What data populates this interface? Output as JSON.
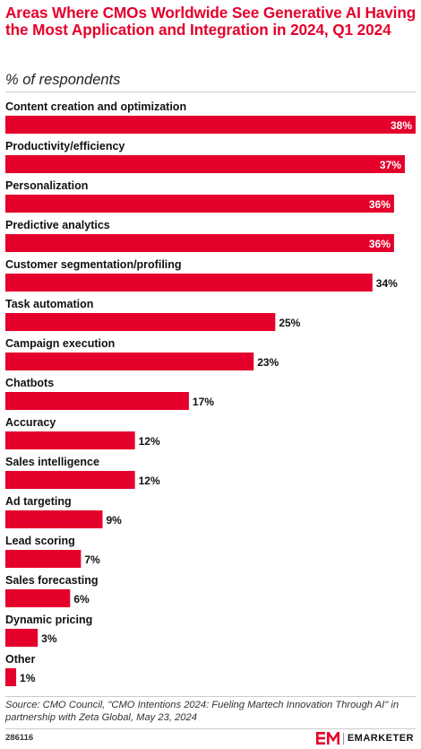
{
  "chart_data": {
    "type": "bar",
    "orientation": "horizontal",
    "title": "Areas Where CMOs Worldwide See Generative AI Having the Most Application and Integration in 2024, Q1 2024",
    "subtitle": "% of respondents",
    "categories": [
      "Content creation and optimization",
      "Productivity/efficiency",
      "Personalization",
      "Predictive analytics",
      "Customer segmentation/profiling",
      "Task automation",
      "Campaign execution",
      "Chatbots",
      "Accuracy",
      "Sales intelligence",
      "Ad targeting",
      "Lead scoring",
      "Sales forecasting",
      "Dynamic pricing",
      "Other"
    ],
    "values": [
      38,
      37,
      36,
      36,
      34,
      25,
      23,
      17,
      12,
      12,
      9,
      7,
      6,
      3,
      1
    ],
    "value_labels": [
      "38%",
      "37%",
      "36%",
      "36%",
      "34%",
      "25%",
      "23%",
      "17%",
      "12%",
      "12%",
      "9%",
      "7%",
      "6%",
      "3%",
      "1%"
    ],
    "xlim": [
      0,
      38
    ],
    "grid": false,
    "legend": "none",
    "bar_color": "#e4002b"
  },
  "source": "Source: CMO Council, \"CMO Intentions 2024: Fueling Martech Innovation Through AI\" in partnership with Zeta Global, May 23, 2024",
  "footer": {
    "chart_id": "286116",
    "brand": "EMARKETER"
  },
  "colors": {
    "accent": "#e4002b",
    "text": "#111111",
    "rule": "#cccccc"
  }
}
